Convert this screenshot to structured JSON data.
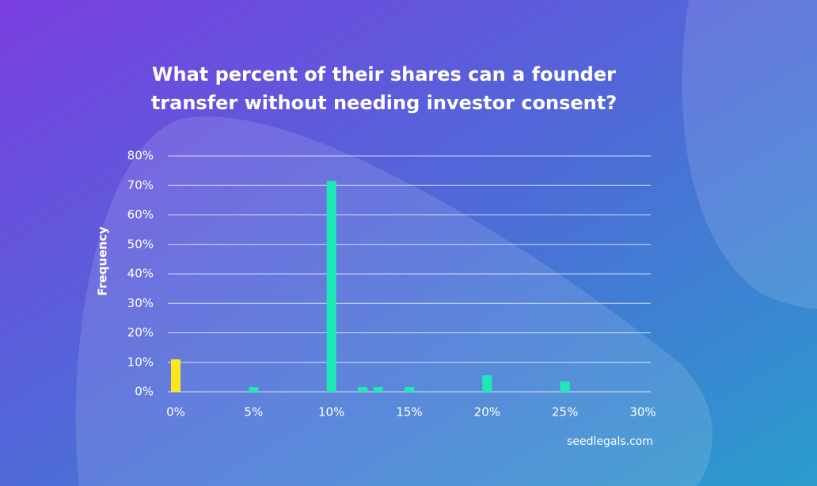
{
  "chart_data": {
    "type": "bar",
    "title": "What percent of their shares can a founder transfer without needing investor consent?",
    "y_label": "Frequency",
    "source": "seedlegals.com",
    "x": [
      0,
      5,
      10,
      12,
      13,
      15,
      20,
      25
    ],
    "values": [
      11,
      1.6,
      71.5,
      1.6,
      1.6,
      1.6,
      5.6,
      3.5
    ],
    "colors": [
      "#ffe81a",
      "#1de9b6",
      "#1de9b6",
      "#1de9b6",
      "#1de9b6",
      "#1de9b6",
      "#1de9b6",
      "#1de9b6"
    ],
    "xlim": [
      0,
      30
    ],
    "xticks": [
      {
        "value": 0,
        "label": "0%"
      },
      {
        "value": 5,
        "label": "5%"
      },
      {
        "value": 10,
        "label": "10%"
      },
      {
        "value": 15,
        "label": "15%"
      },
      {
        "value": 20,
        "label": "20%"
      },
      {
        "value": 25,
        "label": "25%"
      },
      {
        "value": 30,
        "label": "30%"
      }
    ],
    "ylim": [
      0,
      80
    ],
    "yticks": [
      {
        "value": 0,
        "label": "0%"
      },
      {
        "value": 10,
        "label": "10%"
      },
      {
        "value": 20,
        "label": "20%"
      },
      {
        "value": 30,
        "label": "30%"
      },
      {
        "value": 40,
        "label": "40%"
      },
      {
        "value": 50,
        "label": "50%"
      },
      {
        "value": 60,
        "label": "60%"
      },
      {
        "value": 70,
        "label": "70%"
      },
      {
        "value": 80,
        "label": "80%"
      }
    ],
    "grid": true
  }
}
